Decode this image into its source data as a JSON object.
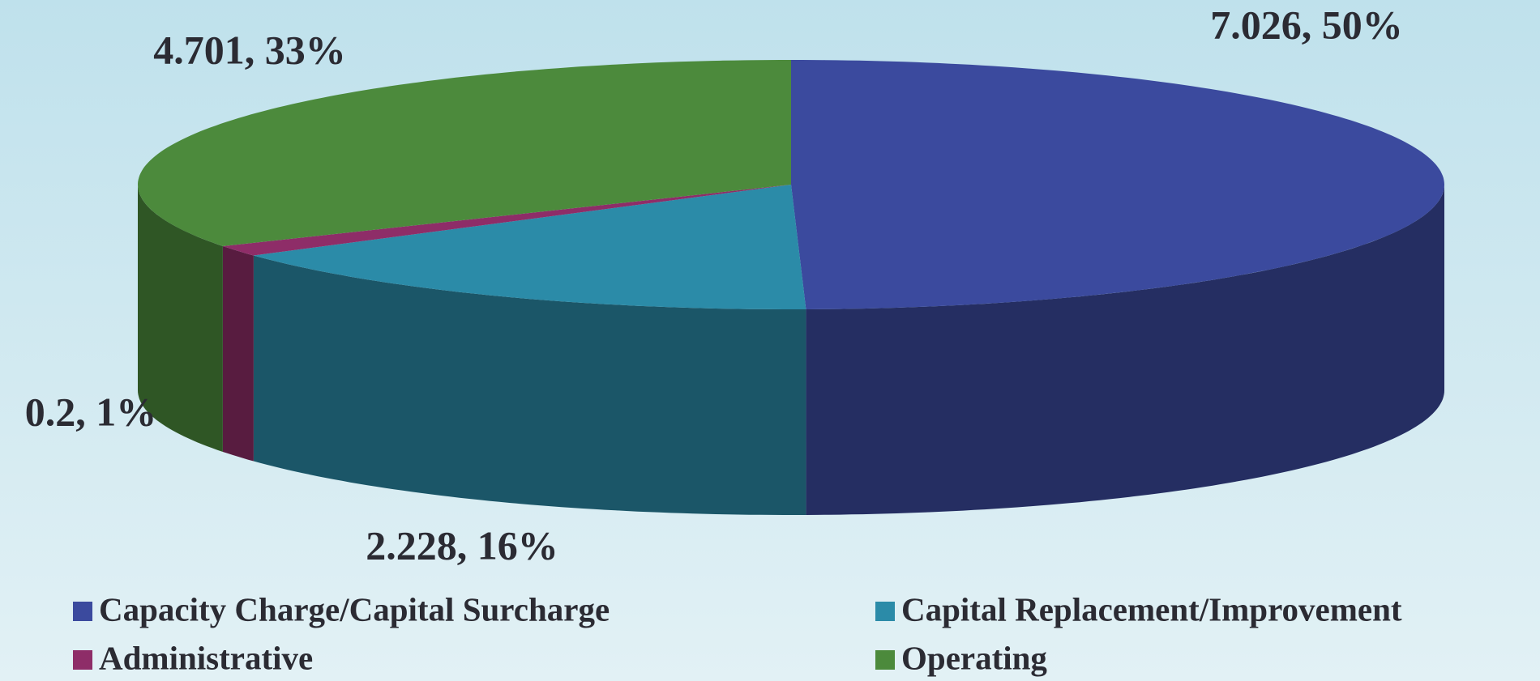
{
  "chart_data": {
    "type": "pie3d",
    "categories": [
      "Capacity Charge/Capital Surcharge",
      "Capital Replacement/Improvement",
      "Administrative",
      "Operating"
    ],
    "values": [
      7.026,
      2.228,
      0.2,
      4.701
    ],
    "value_labels": [
      "7.026, 50%",
      "2.228, 16%",
      "0.2, 1%",
      "4.701, 33%"
    ],
    "colors": [
      "#3b4a9e",
      "#2b8ba8",
      "#8e2d68",
      "#4c8a3c"
    ],
    "legend": "bottom"
  }
}
